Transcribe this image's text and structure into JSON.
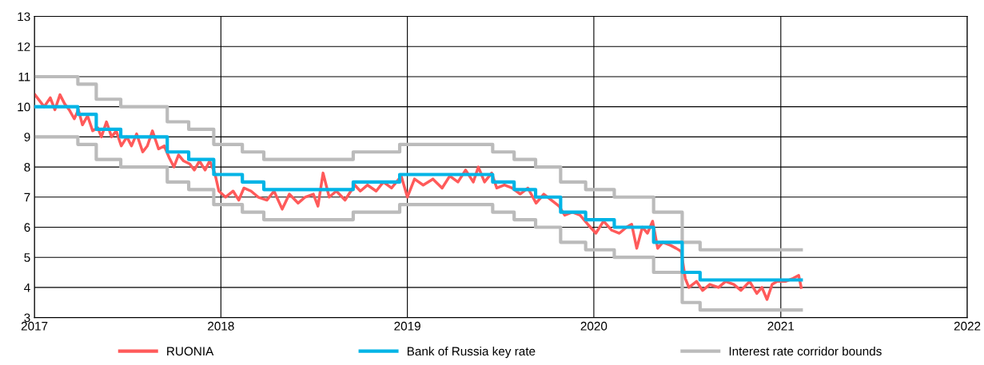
{
  "chart_data": {
    "type": "line",
    "xlim": [
      "2017-01-01",
      "2022-01-01"
    ],
    "xticks": [
      {
        "value": "2017-01-01",
        "label": "2017"
      },
      {
        "value": "2018-01-01",
        "label": "2018"
      },
      {
        "value": "2019-01-01",
        "label": "2019"
      },
      {
        "value": "2020-01-01",
        "label": "2020"
      },
      {
        "value": "2021-01-01",
        "label": "2021"
      },
      {
        "value": "2022-01-01",
        "label": "2022"
      }
    ],
    "ylim": [
      3,
      13
    ],
    "yticks": [
      3,
      4,
      5,
      6,
      7,
      8,
      9,
      10,
      11,
      12,
      13
    ],
    "grid": true,
    "legend": "bottom",
    "series": [
      {
        "name": "RUONIA",
        "color": "#ff5a5a",
        "x": [
          "2017-01-02",
          "2017-01-20",
          "2017-02-01",
          "2017-02-10",
          "2017-02-20",
          "2017-03-01",
          "2017-03-10",
          "2017-03-20",
          "2017-03-28",
          "2017-04-05",
          "2017-04-15",
          "2017-04-25",
          "2017-05-05",
          "2017-05-12",
          "2017-05-22",
          "2017-06-01",
          "2017-06-10",
          "2017-06-20",
          "2017-07-01",
          "2017-07-10",
          "2017-07-20",
          "2017-08-01",
          "2017-08-10",
          "2017-08-20",
          "2017-09-01",
          "2017-09-12",
          "2017-09-22",
          "2017-10-01",
          "2017-10-10",
          "2017-10-20",
          "2017-11-01",
          "2017-11-10",
          "2017-11-20",
          "2017-12-01",
          "2017-12-10",
          "2017-12-20",
          "2017-12-28",
          "2018-01-10",
          "2018-01-25",
          "2018-02-05",
          "2018-02-15",
          "2018-03-01",
          "2018-03-15",
          "2018-04-01",
          "2018-04-15",
          "2018-05-01",
          "2018-05-15",
          "2018-06-01",
          "2018-06-15",
          "2018-07-01",
          "2018-07-10",
          "2018-07-20",
          "2018-08-01",
          "2018-08-15",
          "2018-09-01",
          "2018-09-20",
          "2018-10-01",
          "2018-10-15",
          "2018-11-01",
          "2018-11-15",
          "2018-12-01",
          "2018-12-20",
          "2019-01-01",
          "2019-01-15",
          "2019-02-01",
          "2019-02-20",
          "2019-03-10",
          "2019-03-25",
          "2019-04-10",
          "2019-04-25",
          "2019-05-10",
          "2019-05-20",
          "2019-06-01",
          "2019-06-15",
          "2019-06-25",
          "2019-07-10",
          "2019-07-25",
          "2019-08-10",
          "2019-08-25",
          "2019-09-10",
          "2019-09-25",
          "2019-10-10",
          "2019-10-25",
          "2019-11-05",
          "2019-11-20",
          "2019-12-05",
          "2019-12-20",
          "2020-01-05",
          "2020-01-20",
          "2020-02-05",
          "2020-02-20",
          "2020-03-05",
          "2020-03-15",
          "2020-03-25",
          "2020-04-05",
          "2020-04-15",
          "2020-04-25",
          "2020-05-05",
          "2020-05-15",
          "2020-05-30",
          "2020-06-10",
          "2020-06-20",
          "2020-06-28",
          "2020-07-05",
          "2020-07-20",
          "2020-08-01",
          "2020-08-15",
          "2020-09-01",
          "2020-09-15",
          "2020-10-01",
          "2020-10-15",
          "2020-11-01",
          "2020-11-15",
          "2020-11-25",
          "2020-12-05",
          "2020-12-15",
          "2020-12-25",
          "2021-01-10",
          "2021-01-25",
          "2021-02-05",
          "2021-02-10"
        ],
        "values": [
          10.4,
          10.0,
          10.3,
          9.9,
          10.4,
          10.1,
          9.9,
          9.6,
          9.9,
          9.4,
          9.7,
          9.2,
          9.3,
          9.0,
          9.5,
          9.0,
          9.2,
          8.7,
          9.0,
          8.7,
          9.1,
          8.5,
          8.7,
          9.2,
          8.6,
          8.7,
          8.3,
          8.0,
          8.4,
          8.2,
          8.1,
          7.9,
          8.2,
          7.9,
          8.2,
          7.8,
          7.2,
          7.0,
          7.2,
          6.9,
          7.3,
          7.2,
          7.0,
          6.9,
          7.2,
          6.6,
          7.1,
          6.8,
          7.0,
          7.1,
          6.7,
          7.8,
          7.0,
          7.2,
          6.9,
          7.4,
          7.2,
          7.4,
          7.2,
          7.5,
          7.3,
          7.7,
          7.0,
          7.6,
          7.4,
          7.6,
          7.3,
          7.7,
          7.5,
          7.9,
          7.5,
          8.0,
          7.5,
          7.8,
          7.3,
          7.4,
          7.3,
          7.1,
          7.3,
          6.8,
          7.1,
          6.9,
          6.7,
          6.4,
          6.5,
          6.4,
          6.1,
          5.8,
          6.2,
          5.9,
          5.8,
          6.0,
          6.1,
          5.3,
          6.0,
          5.8,
          6.2,
          5.3,
          5.5,
          5.4,
          5.3,
          5.2,
          4.3,
          4.0,
          4.2,
          3.9,
          4.1,
          4.0,
          4.2,
          4.1,
          3.9,
          4.2,
          3.8,
          4.0,
          3.6,
          4.1,
          4.2,
          4.2,
          4.3,
          4.4,
          4.0
        ]
      },
      {
        "name": "Bank of Russia key rate",
        "type": "step",
        "color": "#00b4e6",
        "x": [
          "2017-01-01",
          "2017-03-27",
          "2017-05-02",
          "2017-06-19",
          "2017-09-18",
          "2017-10-30",
          "2017-12-18",
          "2018-02-12",
          "2018-03-26",
          "2018-09-17",
          "2018-12-17",
          "2019-06-17",
          "2019-07-29",
          "2019-09-09",
          "2019-10-28",
          "2019-12-16",
          "2020-02-10",
          "2020-04-27",
          "2020-06-22",
          "2020-07-27",
          "2021-02-10"
        ],
        "values": [
          10.0,
          9.75,
          9.25,
          9.0,
          8.5,
          8.25,
          7.75,
          7.5,
          7.25,
          7.5,
          7.75,
          7.5,
          7.25,
          7.0,
          6.5,
          6.25,
          6.0,
          5.5,
          4.5,
          4.25,
          4.25
        ]
      },
      {
        "name": "Interest rate corridor bounds",
        "type": "step",
        "color": "#bbbbbb",
        "x": [
          "2017-01-01",
          "2017-03-27",
          "2017-05-02",
          "2017-06-19",
          "2017-09-18",
          "2017-10-30",
          "2017-12-18",
          "2018-02-12",
          "2018-03-26",
          "2018-09-17",
          "2018-12-17",
          "2019-06-17",
          "2019-07-29",
          "2019-09-09",
          "2019-10-28",
          "2019-12-16",
          "2020-02-10",
          "2020-04-27",
          "2020-06-22",
          "2020-07-27",
          "2021-02-10"
        ],
        "values": [
          11.0,
          10.75,
          10.25,
          10.0,
          9.5,
          9.25,
          8.75,
          8.5,
          8.25,
          8.5,
          8.75,
          8.5,
          8.25,
          8.0,
          7.5,
          7.25,
          7.0,
          6.5,
          5.5,
          5.25,
          5.25
        ]
      },
      {
        "type": "step",
        "color": "#bbbbbb",
        "x": [
          "2017-01-01",
          "2017-03-27",
          "2017-05-02",
          "2017-06-19",
          "2017-09-18",
          "2017-10-30",
          "2017-12-18",
          "2018-02-12",
          "2018-03-26",
          "2018-09-17",
          "2018-12-17",
          "2019-06-17",
          "2019-07-29",
          "2019-09-09",
          "2019-10-28",
          "2019-12-16",
          "2020-02-10",
          "2020-04-27",
          "2020-06-22",
          "2020-07-27",
          "2021-02-10"
        ],
        "values": [
          9.0,
          8.75,
          8.25,
          8.0,
          7.5,
          7.25,
          6.75,
          6.5,
          6.25,
          6.5,
          6.75,
          6.5,
          6.25,
          6.0,
          5.5,
          5.25,
          5.0,
          4.5,
          3.5,
          3.25,
          3.25
        ]
      }
    ]
  }
}
